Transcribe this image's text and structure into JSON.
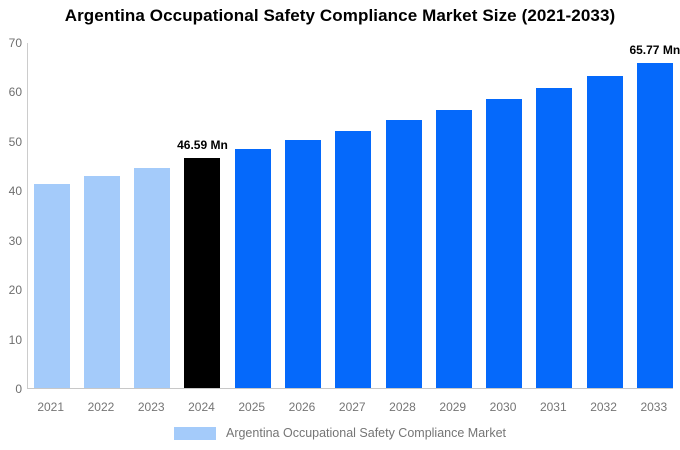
{
  "title": "Argentina Occupational Safety Compliance Market Size (2021-2033)",
  "legend": {
    "label": "Argentina Occupational Safety Compliance Market",
    "swatch_color": "#a4cbfa"
  },
  "colors": {
    "historical_bar": "#a4cbfa",
    "current_year_bar": "#000000",
    "forecast_bar": "#0569fb",
    "axis_line": "#cccccc",
    "tick_text": "#757575",
    "title_text": "#000000",
    "annotation_text": "#000000"
  },
  "chart_data": {
    "type": "bar",
    "title": "Argentina Occupational Safety Compliance Market Size (2021-2033)",
    "xlabel": "",
    "ylabel": "",
    "categories": [
      "2021",
      "2022",
      "2023",
      "2024",
      "2025",
      "2026",
      "2027",
      "2028",
      "2029",
      "2030",
      "2031",
      "2032",
      "2033"
    ],
    "values": [
      41.3,
      42.9,
      44.6,
      46.59,
      48.3,
      50.1,
      52.0,
      54.2,
      56.3,
      58.4,
      60.7,
      63.1,
      65.77
    ],
    "bar_colors": [
      "#a4cbfa",
      "#a4cbfa",
      "#a4cbfa",
      "#000000",
      "#0569fb",
      "#0569fb",
      "#0569fb",
      "#0569fb",
      "#0569fb",
      "#0569fb",
      "#0569fb",
      "#0569fb",
      "#0569fb"
    ],
    "annotations": [
      {
        "category": "2024",
        "text": "46.59 Mn"
      },
      {
        "category": "2033",
        "text": "65.77 Mn"
      }
    ],
    "ylim": [
      0,
      70
    ],
    "yticks": [
      0,
      10,
      20,
      30,
      40,
      50,
      60,
      70
    ],
    "grid": false,
    "legend_position": "bottom",
    "legend_entries": [
      "Argentina Occupational Safety Compliance Market"
    ]
  }
}
